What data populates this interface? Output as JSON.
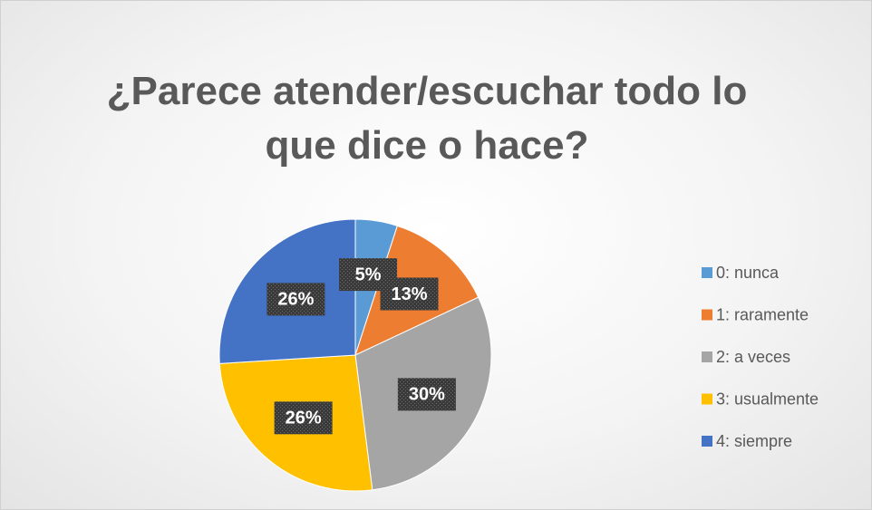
{
  "chart_data": {
    "type": "pie",
    "title": "¿Parece atender/escuchar todo lo que dice o hace?",
    "categories": [
      "0: nunca",
      "1: raramente",
      "2: a veces",
      "3: usualmente",
      "4: siempre"
    ],
    "values": [
      5,
      13,
      30,
      26,
      26
    ],
    "value_labels": [
      "5%",
      "13%",
      "30%",
      "26%",
      "26%"
    ],
    "colors": [
      "#5b9bd5",
      "#ed7d31",
      "#a5a5a5",
      "#ffc000",
      "#4472c4"
    ],
    "legend": "right"
  }
}
